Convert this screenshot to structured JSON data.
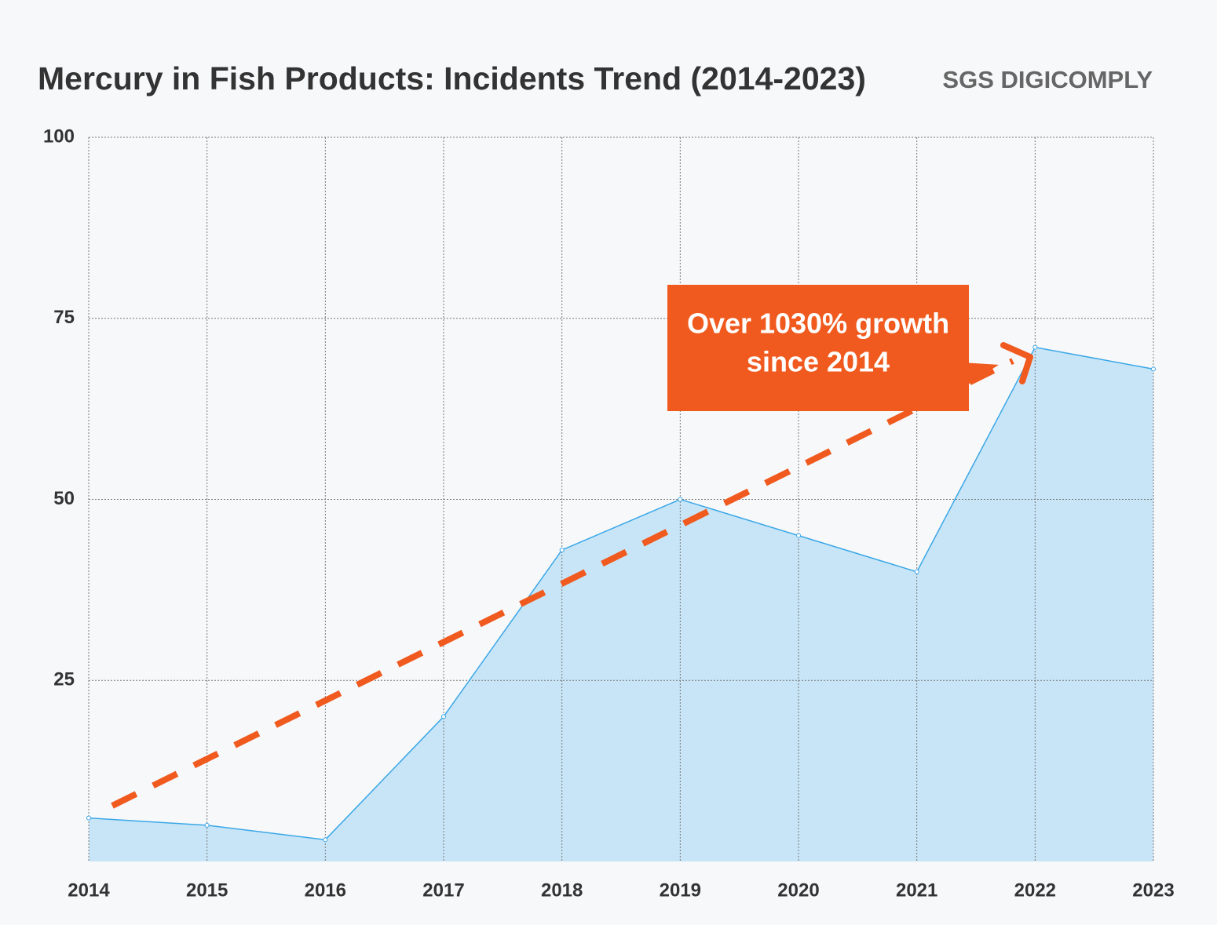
{
  "chart_data": {
    "type": "area",
    "title": "Mercury in Fish Products: Incidents Trend (2014-2023)",
    "logo": "SGS DIGICOMPLY",
    "annotation": [
      "Over 1030% growth",
      "since 2014"
    ],
    "x": [
      2014,
      2015,
      2016,
      2017,
      2018,
      2019,
      2020,
      2021,
      2022,
      2023
    ],
    "xlim": [
      2014,
      2023
    ],
    "xticks": [
      2014,
      2015,
      2016,
      2017,
      2018,
      2019,
      2020,
      2021,
      2022,
      2023
    ],
    "series": [
      {
        "color": "#3aa7e6",
        "values": [
          6,
          5,
          3,
          20,
          43,
          50,
          45,
          40,
          71,
          68
        ]
      }
    ],
    "ylim": [
      0,
      100
    ],
    "yticks": [
      25,
      50,
      75,
      100
    ],
    "grid": true
  }
}
